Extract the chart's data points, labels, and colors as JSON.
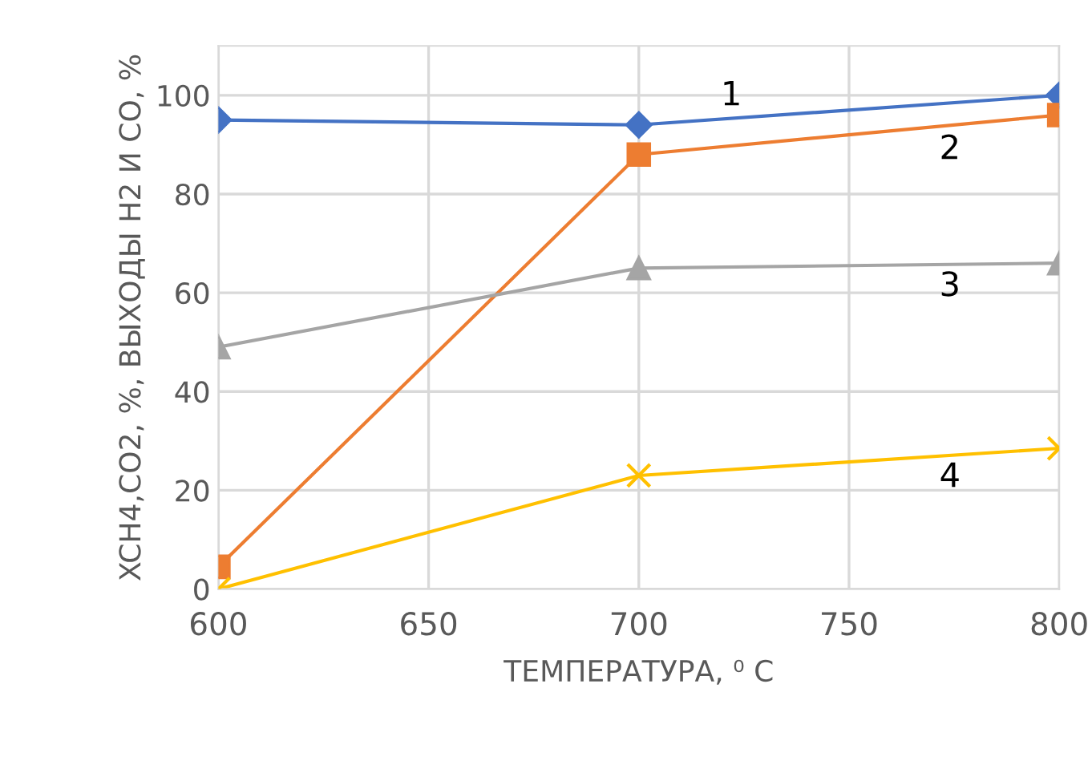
{
  "chart_data": {
    "type": "line",
    "xlabel": "ТЕМПЕРАТУРА, ⁰ C",
    "ylabel": "XCH4,CO2, %, ВЫХОДЫ H2 И CO, %",
    "x": [
      600,
      700,
      800
    ],
    "series": [
      {
        "name": "1",
        "color": "#4472c4",
        "marker": "diamond",
        "values": [
          95,
          94,
          100
        ]
      },
      {
        "name": "2",
        "color": "#ed7d31",
        "marker": "square",
        "values": [
          4.5,
          88,
          96
        ]
      },
      {
        "name": "3",
        "color": "#a5a5a5",
        "marker": "triangle",
        "values": [
          49,
          65,
          66
        ]
      },
      {
        "name": "4",
        "color": "#ffc000",
        "marker": "cross",
        "values": [
          0,
          23,
          28.5
        ]
      }
    ],
    "xlim": [
      600,
      800
    ],
    "xticks": [
      600,
      650,
      700,
      750,
      800
    ],
    "ylim": [
      0,
      110
    ],
    "yticks": [
      0,
      20,
      40,
      60,
      80,
      100
    ],
    "grid": true,
    "line_style": "solid"
  }
}
